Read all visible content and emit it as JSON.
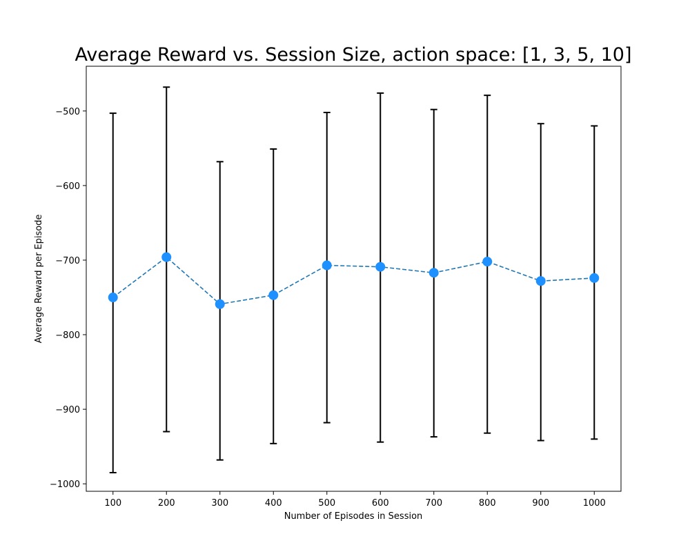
{
  "chart_data": {
    "type": "line",
    "title": "Average Reward vs. Session Size, action space: [1, 3, 5, 10]",
    "xlabel": "Number of Episodes in Session",
    "ylabel": "Average Reward per Episode",
    "x": [
      100,
      200,
      300,
      400,
      500,
      600,
      700,
      800,
      900,
      1000
    ],
    "x_tick_labels": [
      "100",
      "200",
      "300",
      "400",
      "500",
      "600",
      "700",
      "800",
      "900",
      "1000"
    ],
    "y_ticks": [
      -500,
      -600,
      -700,
      -800,
      -900,
      -1000
    ],
    "y_tick_labels": [
      "−500",
      "−600",
      "−700",
      "−800",
      "−900",
      "−1000"
    ],
    "xlim": [
      50,
      1050
    ],
    "ylim": [
      -1010,
      -440
    ],
    "series": [
      {
        "values": [
          -750,
          -696,
          -759,
          -747,
          -707,
          -709,
          -717,
          -702,
          -728,
          -724
        ],
        "error_low": [
          -985,
          -930,
          -968,
          -946,
          -918,
          -944,
          -937,
          -932,
          -942,
          -940
        ],
        "error_high": [
          -503,
          -468,
          -568,
          -551,
          -502,
          -476,
          -498,
          -479,
          -517,
          -520
        ]
      }
    ],
    "grid": false,
    "colors": {
      "line": "#1f77b4",
      "marker": "#1e90ff",
      "errorbar": "#000000"
    }
  }
}
